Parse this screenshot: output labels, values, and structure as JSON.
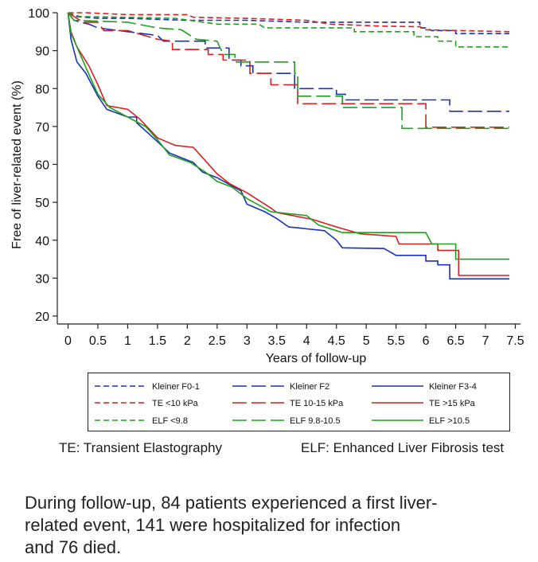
{
  "chart_data": {
    "type": "line",
    "subtype": "kaplan-meier step curves",
    "xlabel": "Years of follow-up",
    "ylabel": "Free of liver-related event (%)",
    "xlim": [
      -0.05,
      7.55
    ],
    "ylim": [
      17,
      101
    ],
    "xticks": [
      0,
      0.5,
      1,
      1.5,
      2,
      2.5,
      3,
      3.5,
      4,
      4.5,
      5,
      5.5,
      6,
      6.5,
      7,
      7.5
    ],
    "xtick_labels": [
      "0",
      "0.5",
      "1",
      "1.5",
      "2",
      "2.5",
      "3",
      "3.5",
      "4",
      "4.5",
      "5",
      "5.5",
      "6",
      "6.5",
      "7",
      "7.5"
    ],
    "yticks": [
      20,
      30,
      40,
      50,
      60,
      70,
      80,
      90,
      100
    ],
    "ytick_labels": [
      "20",
      "30",
      "40",
      "50",
      "60",
      "70",
      "80",
      "90",
      "100"
    ],
    "grid": false,
    "series": [
      {
        "name": "Kleiner F0-1",
        "color": "#1a33b3",
        "dash": "dense",
        "points": [
          [
            0,
            100
          ],
          [
            0.15,
            99
          ],
          [
            0.5,
            98.5
          ],
          [
            1,
            98.5
          ],
          [
            2,
            98
          ],
          [
            3,
            98
          ],
          [
            4,
            97.5
          ],
          [
            5,
            97.5
          ],
          [
            5.9,
            97.5
          ],
          [
            5.9,
            96
          ],
          [
            6,
            96
          ],
          [
            6.1,
            95.3
          ],
          [
            6.5,
            95.3
          ],
          [
            6.5,
            94.5
          ],
          [
            7.4,
            94.5
          ]
        ]
      },
      {
        "name": "TE <10 kPa",
        "color": "#d42020",
        "dash": "dense",
        "points": [
          [
            0,
            100
          ],
          [
            0.3,
            100
          ],
          [
            1,
            99.5
          ],
          [
            2,
            99.5
          ],
          [
            2.1,
            98.8
          ],
          [
            3,
            98.5
          ],
          [
            4,
            98
          ],
          [
            4.4,
            97
          ],
          [
            5.2,
            96.5
          ],
          [
            5.9,
            96.3
          ],
          [
            6,
            95.5
          ],
          [
            7.4,
            95
          ]
        ]
      },
      {
        "name": "ELF <9.8",
        "color": "#20a020",
        "dash": "dense",
        "points": [
          [
            0,
            100
          ],
          [
            0.2,
            99
          ],
          [
            1,
            98.8
          ],
          [
            1.8,
            98.5
          ],
          [
            2.5,
            97
          ],
          [
            3.2,
            97
          ],
          [
            3.3,
            96
          ],
          [
            4,
            96
          ],
          [
            4.8,
            96
          ],
          [
            4.8,
            95
          ],
          [
            5.8,
            95
          ],
          [
            5.8,
            93.7
          ],
          [
            6.2,
            93.7
          ],
          [
            6.2,
            92.5
          ],
          [
            6.5,
            92.5
          ],
          [
            6.5,
            91
          ],
          [
            7.4,
            91
          ]
        ]
      },
      {
        "name": "Kleiner F2",
        "color": "#1a33b3",
        "dash": "long",
        "points": [
          [
            0,
            100
          ],
          [
            0.1,
            98
          ],
          [
            0.2,
            97.5
          ],
          [
            0.35,
            97
          ],
          [
            0.5,
            96
          ],
          [
            1,
            95
          ],
          [
            1.5,
            94
          ],
          [
            1.6,
            92.5
          ],
          [
            2.3,
            92.5
          ],
          [
            2.3,
            90.7
          ],
          [
            2.7,
            90.7
          ],
          [
            2.7,
            87.5
          ],
          [
            2.9,
            87.5
          ],
          [
            2.9,
            86
          ],
          [
            3.1,
            86
          ],
          [
            3.1,
            84
          ],
          [
            3.8,
            84
          ],
          [
            3.8,
            80
          ],
          [
            4.5,
            80
          ],
          [
            4.5,
            78.5
          ],
          [
            4.65,
            78.5
          ],
          [
            4.65,
            77
          ],
          [
            5.8,
            77
          ],
          [
            5.8,
            77
          ],
          [
            6.4,
            77
          ],
          [
            6.4,
            74
          ],
          [
            7.4,
            74
          ]
        ]
      },
      {
        "name": "TE 10-15 kPa",
        "color": "#d42020",
        "dash": "long",
        "points": [
          [
            0,
            100
          ],
          [
            0.25,
            97.5
          ],
          [
            0.5,
            97.5
          ],
          [
            0.6,
            95.3
          ],
          [
            1,
            95.3
          ],
          [
            1.5,
            93
          ],
          [
            1.75,
            92.5
          ],
          [
            1.75,
            90.3
          ],
          [
            2.35,
            90.3
          ],
          [
            2.35,
            89
          ],
          [
            2.6,
            89
          ],
          [
            2.6,
            87.5
          ],
          [
            3.05,
            87.5
          ],
          [
            3.05,
            84
          ],
          [
            3.4,
            84
          ],
          [
            3.4,
            81
          ],
          [
            3.85,
            81
          ],
          [
            3.85,
            76
          ],
          [
            5.8,
            76
          ],
          [
            6,
            76
          ],
          [
            6,
            69.8
          ],
          [
            7.4,
            69.8
          ]
        ]
      },
      {
        "name": "ELF 9.8-10.5",
        "color": "#20a020",
        "dash": "long",
        "points": [
          [
            0,
            100
          ],
          [
            0.1,
            98
          ],
          [
            1,
            97.5
          ],
          [
            1.5,
            96
          ],
          [
            1.9,
            95.5
          ],
          [
            2.15,
            93
          ],
          [
            2.5,
            92.5
          ],
          [
            2.6,
            89
          ],
          [
            2.8,
            89
          ],
          [
            2.8,
            87
          ],
          [
            3.8,
            87
          ],
          [
            3.8,
            84
          ],
          [
            3.85,
            84
          ],
          [
            3.85,
            78
          ],
          [
            4.6,
            78
          ],
          [
            4.6,
            75
          ],
          [
            5.6,
            75
          ],
          [
            5.6,
            69.5
          ],
          [
            7.4,
            69.5
          ]
        ]
      },
      {
        "name": "Kleiner F3-4",
        "color": "#1a33b3",
        "dash": "solid",
        "points": [
          [
            0,
            100
          ],
          [
            0.05,
            93
          ],
          [
            0.15,
            87
          ],
          [
            0.3,
            84
          ],
          [
            0.5,
            78
          ],
          [
            0.65,
            74.5
          ],
          [
            1,
            72.5
          ],
          [
            1.15,
            72.5
          ],
          [
            1.15,
            71
          ],
          [
            1.5,
            66
          ],
          [
            1.7,
            63
          ],
          [
            2.1,
            60.5
          ],
          [
            2.25,
            58
          ],
          [
            2.5,
            56.5
          ],
          [
            2.9,
            53
          ],
          [
            3,
            49.5
          ],
          [
            3.3,
            47.5
          ],
          [
            3.5,
            45.7
          ],
          [
            3.7,
            43.5
          ],
          [
            4.3,
            42.5
          ],
          [
            4.5,
            40
          ],
          [
            4.6,
            38
          ],
          [
            5.3,
            37.8
          ],
          [
            5.5,
            36
          ],
          [
            6,
            36
          ],
          [
            6,
            34.5
          ],
          [
            6.2,
            34.5
          ],
          [
            6.2,
            33.5
          ],
          [
            6.4,
            33.5
          ],
          [
            6.4,
            29.8
          ],
          [
            7.4,
            29.8
          ]
        ]
      },
      {
        "name": "TE >15 kPa",
        "color": "#d42020",
        "dash": "solid",
        "points": [
          [
            0,
            100
          ],
          [
            0.05,
            95
          ],
          [
            0.15,
            91
          ],
          [
            0.25,
            88.5
          ],
          [
            0.35,
            86
          ],
          [
            0.5,
            81
          ],
          [
            0.65,
            75.5
          ],
          [
            1,
            74.5
          ],
          [
            1.2,
            72
          ],
          [
            1.5,
            67
          ],
          [
            1.8,
            65
          ],
          [
            2.1,
            64.5
          ],
          [
            2.3,
            61
          ],
          [
            2.5,
            57.5
          ],
          [
            2.7,
            55
          ],
          [
            3,
            52.5
          ],
          [
            3.4,
            48.5
          ],
          [
            3.5,
            47.3
          ],
          [
            4.1,
            45.5
          ],
          [
            4.5,
            43.5
          ],
          [
            4.9,
            41.7
          ],
          [
            5.5,
            41
          ],
          [
            5.55,
            39
          ],
          [
            6.2,
            39
          ],
          [
            6.2,
            37.3
          ],
          [
            6.55,
            37.3
          ],
          [
            6.55,
            30.7
          ],
          [
            7.4,
            30.7
          ]
        ]
      },
      {
        "name": "ELF >10.5",
        "color": "#20a020",
        "dash": "solid",
        "points": [
          [
            0,
            100
          ],
          [
            0.05,
            94.5
          ],
          [
            0.15,
            91
          ],
          [
            0.3,
            85.5
          ],
          [
            0.5,
            78.5
          ],
          [
            0.7,
            75
          ],
          [
            1,
            72.5
          ],
          [
            1.3,
            70
          ],
          [
            1.5,
            66.5
          ],
          [
            1.7,
            62.5
          ],
          [
            2.05,
            60.5
          ],
          [
            2.3,
            58
          ],
          [
            2.5,
            55.5
          ],
          [
            2.75,
            54
          ],
          [
            3,
            51
          ],
          [
            3.4,
            47.5
          ],
          [
            4,
            46.5
          ],
          [
            4.2,
            44
          ],
          [
            4.5,
            42.5
          ],
          [
            4.6,
            42
          ],
          [
            5.5,
            42
          ],
          [
            6,
            42
          ],
          [
            6.1,
            39
          ],
          [
            6.5,
            39
          ],
          [
            6.5,
            35
          ],
          [
            7.4,
            35
          ]
        ]
      }
    ]
  },
  "legend": {
    "entries": [
      {
        "label": "Kleiner F0-1",
        "color": "#1a33b3",
        "dash": "dense"
      },
      {
        "label": "Kleiner F2",
        "color": "#1a33b3",
        "dash": "long"
      },
      {
        "label": "Kleiner F3-4",
        "color": "#1a33b3",
        "dash": "solid"
      },
      {
        "label": "TE <10 kPa",
        "color": "#d42020",
        "dash": "dense"
      },
      {
        "label": "TE 10-15 kPa",
        "color": "#d42020",
        "dash": "long"
      },
      {
        "label": "TE >15 kPa",
        "color": "#d42020",
        "dash": "solid"
      },
      {
        "label": "ELF <9.8",
        "color": "#20a020",
        "dash": "dense"
      },
      {
        "label": "ELF 9.8-10.5",
        "color": "#20a020",
        "dash": "long"
      },
      {
        "label": "ELF >10.5",
        "color": "#20a020",
        "dash": "solid"
      }
    ]
  },
  "notes": {
    "te": "TE: Transient Elastography",
    "elf": "ELF: Enhanced Liver Fibrosis test"
  },
  "caption": {
    "line1": "During follow-up, 84 patients experienced a first liver-",
    "line2": "related event, 141 were hospitalized for infection",
    "line3": "and 76 died."
  }
}
